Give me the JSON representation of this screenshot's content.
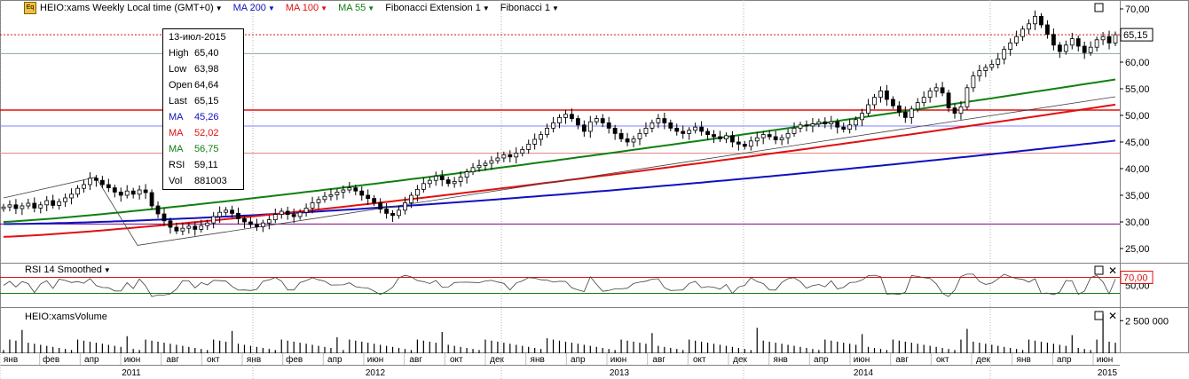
{
  "header": {
    "eq_icon": "Eq",
    "title": "HEIO:xams Weekly Local time (GMT+0)",
    "indicators": [
      {
        "label": "MA 200",
        "color": "#1010c0"
      },
      {
        "label": "MA 100",
        "color": "#e01010"
      },
      {
        "label": "MA 55",
        "color": "#108010"
      },
      {
        "label": "Fibonacci Extension 1",
        "color": "#000000"
      },
      {
        "label": "Fibonacci 1",
        "color": "#000000"
      }
    ]
  },
  "info_box": {
    "date": "13-июл-2015",
    "rows": [
      {
        "k": "High",
        "v": "65,40",
        "color": "#000000"
      },
      {
        "k": "Low",
        "v": "63,98",
        "color": "#000000"
      },
      {
        "k": "Open",
        "v": "64,64",
        "color": "#000000"
      },
      {
        "k": "Last",
        "v": "65,15",
        "color": "#000000"
      },
      {
        "k": "MA",
        "v": "45,26",
        "color": "#1010c0"
      },
      {
        "k": "MA",
        "v": "52,02",
        "color": "#e01010"
      },
      {
        "k": "MA",
        "v": "56,75",
        "color": "#108010"
      },
      {
        "k": "RSI",
        "v": "59,11",
        "color": "#000000"
      },
      {
        "k": "Vol",
        "v": "881003",
        "color": "#000000"
      }
    ]
  },
  "panels": {
    "rsi_title": "RSI 14 Smoothed",
    "volume_title": "HEIO:xamsVolume"
  },
  "chart_data": {
    "type": "candlestick",
    "price_axis": {
      "ticks": [
        "25,00",
        "30,00",
        "35,00",
        "40,00",
        "45,00",
        "50,00",
        "55,00",
        "60,00",
        "65,00",
        "70,00"
      ],
      "range": [
        23,
        71
      ]
    },
    "last_price_label": "65,15",
    "rsi_axis": {
      "ticks": [
        "50,00"
      ],
      "marker_label": "70,00",
      "range": [
        0,
        100
      ],
      "overbought": 70,
      "oversold": 30
    },
    "volume_axis": {
      "ticks": [
        "2 500 000"
      ]
    },
    "horizontal_levels": [
      {
        "value": 65.15,
        "color": "#e01010",
        "style": "dotted"
      },
      {
        "value": 61.6,
        "color": "#8aa8a0",
        "style": "solid"
      },
      {
        "value": 51.0,
        "color": "#e01010",
        "style": "solid"
      },
      {
        "value": 48.0,
        "color": "#8080ff",
        "style": "solid"
      },
      {
        "value": 42.9,
        "color": "#e08080",
        "style": "solid"
      },
      {
        "value": 29.6,
        "color": "#800080",
        "style": "solid"
      }
    ],
    "month_labels": [
      "янв",
      "фев",
      "апр",
      "июн",
      "авг",
      "окт",
      "янв",
      "фев",
      "апр",
      "июн",
      "авг",
      "окт",
      "дек",
      "янв",
      "апр",
      "июн",
      "авг",
      "окт",
      "дек",
      "янв",
      "апр",
      "июн",
      "авг",
      "окт",
      "дек",
      "янв",
      "апр",
      "июн"
    ],
    "year_labels": [
      "2011",
      "2012",
      "2013",
      "2014",
      "2015"
    ],
    "weekly_close": [
      32.8,
      33.2,
      32.5,
      33.0,
      33.5,
      32.6,
      33.2,
      34.0,
      33.1,
      33.8,
      34.5,
      35.2,
      36.3,
      37.0,
      38.2,
      37.8,
      37.0,
      36.4,
      35.6,
      35.0,
      35.8,
      35.2,
      36.0,
      35.5,
      33.0,
      31.5,
      30.2,
      29.0,
      28.3,
      28.8,
      29.2,
      28.6,
      29.3,
      29.8,
      31.0,
      31.8,
      32.2,
      31.6,
      30.6,
      30.0,
      29.5,
      29.1,
      29.8,
      30.4,
      31.4,
      32.0,
      31.4,
      31.0,
      31.8,
      32.6,
      33.6,
      34.2,
      34.8,
      35.1,
      35.6,
      36.0,
      36.4,
      35.8,
      35.0,
      34.4,
      33.6,
      32.4,
      31.6,
      31.2,
      32.2,
      33.6,
      35.0,
      36.1,
      37.2,
      37.8,
      38.6,
      37.9,
      37.2,
      37.6,
      38.4,
      39.4,
      40.2,
      40.6,
      41.0,
      41.5,
      42.0,
      42.6,
      42.2,
      42.9,
      43.6,
      44.6,
      45.5,
      46.4,
      47.6,
      48.6,
      49.6,
      50.2,
      49.4,
      48.2,
      47.0,
      48.8,
      49.4,
      48.6,
      47.6,
      46.6,
      45.6,
      45.0,
      45.6,
      46.6,
      47.6,
      48.6,
      49.4,
      48.6,
      47.6,
      47.0,
      46.6,
      47.2,
      47.8,
      47.0,
      46.4,
      46.0,
      45.6,
      46.2,
      45.0,
      44.6,
      44.2,
      45.2,
      45.8,
      46.4,
      46.0,
      45.4,
      45.8,
      46.6,
      47.6,
      48.2,
      48.0,
      48.4,
      48.8,
      48.4,
      48.8,
      47.8,
      47.4,
      48.2,
      49.2,
      50.4,
      52.0,
      53.4,
      54.6,
      53.0,
      51.8,
      50.6,
      49.6,
      51.2,
      52.4,
      53.4,
      54.6,
      55.2,
      54.2,
      51.4,
      50.4,
      51.6,
      55.2,
      57.4,
      58.4,
      59.0,
      59.6,
      60.6,
      62.4,
      63.6,
      64.8,
      66.2,
      67.2,
      68.6,
      67.0,
      65.2,
      63.2,
      62.0,
      63.2,
      64.4,
      63.0,
      61.8,
      62.8,
      64.2,
      64.8,
      63.6,
      65.15
    ],
    "ma_200_range": [
      29.6,
      45.26
    ],
    "ma_100_range": [
      27.2,
      52.02
    ],
    "ma_55_range": [
      30.0,
      56.75
    ],
    "fibonacci_extension_points": [
      {
        "x": "2010-12",
        "y": 34.5
      },
      {
        "x": "2011-07",
        "y": 38.4
      },
      {
        "x": "2011-08",
        "y": 25.6
      }
    ]
  }
}
